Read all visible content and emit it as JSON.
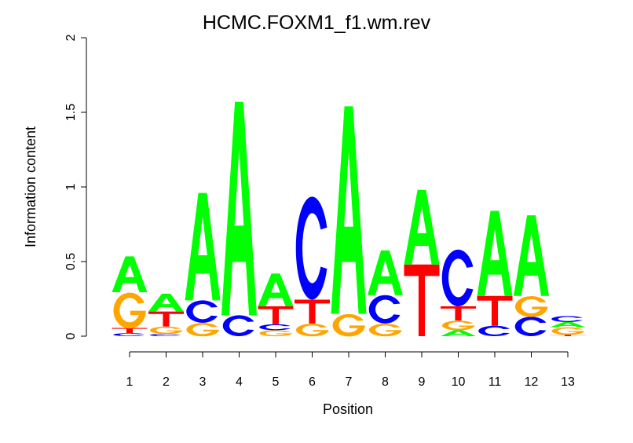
{
  "chart_data": {
    "type": "sequence-logo",
    "title": "HCMC.FOXM1_f1.wm.rev",
    "xlabel": "Position",
    "ylabel": "Information content",
    "ylim": [
      0,
      2
    ],
    "yticks": [
      "0",
      "0.5",
      "1",
      "1.5",
      "2"
    ],
    "ytick_values": [
      0,
      0.5,
      1,
      1.5,
      2
    ],
    "positions": [
      "1",
      "2",
      "3",
      "4",
      "5",
      "6",
      "7",
      "8",
      "9",
      "10",
      "11",
      "12",
      "13"
    ],
    "colors": {
      "A": "#00ff00",
      "C": "#0000ff",
      "G": "#ffa500",
      "T": "#ff0000"
    },
    "stacks": [
      [
        [
          "C",
          0.02
        ],
        [
          "T",
          0.035
        ],
        [
          "G",
          0.24
        ],
        [
          "A",
          0.24
        ]
      ],
      [
        [
          "C",
          0.015
        ],
        [
          "G",
          0.05
        ],
        [
          "T",
          0.1
        ],
        [
          "A",
          0.12
        ]
      ],
      [
        [
          "G",
          0.09
        ],
        [
          "C",
          0.15
        ],
        [
          "A",
          0.72
        ]
      ],
      [
        [
          "C",
          0.14
        ],
        [
          "A",
          1.43
        ]
      ],
      [
        [
          "G",
          0.04
        ],
        [
          "C",
          0.04
        ],
        [
          "T",
          0.12
        ],
        [
          "A",
          0.22
        ]
      ],
      [
        [
          "G",
          0.085
        ],
        [
          "T",
          0.16
        ],
        [
          "C",
          0.69
        ]
      ],
      [
        [
          "G",
          0.15
        ],
        [
          "A",
          1.39
        ]
      ],
      [
        [
          "G",
          0.085
        ],
        [
          "C",
          0.19
        ],
        [
          "A",
          0.3
        ]
      ],
      [
        [
          "T",
          0.48
        ],
        [
          "A",
          0.5
        ]
      ],
      [
        [
          "A",
          0.04
        ],
        [
          "G",
          0.065
        ],
        [
          "T",
          0.095
        ],
        [
          "C",
          0.38
        ]
      ],
      [
        [
          "C",
          0.07
        ],
        [
          "T",
          0.2
        ],
        [
          "A",
          0.57
        ]
      ],
      [
        [
          "C",
          0.13
        ],
        [
          "G",
          0.14
        ],
        [
          "A",
          0.54
        ]
      ],
      [
        [
          "T",
          0.01
        ],
        [
          "G",
          0.05
        ],
        [
          "A",
          0.035
        ],
        [
          "C",
          0.04
        ]
      ]
    ]
  }
}
